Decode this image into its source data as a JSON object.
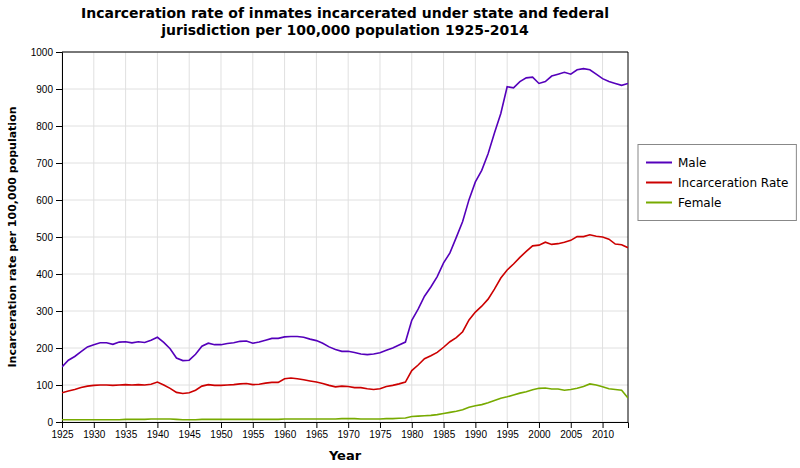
{
  "chart_data": {
    "type": "line",
    "title": "Incarceration rate of inmates incarcerated under state and federal\njurisdiction per 100,000 population 1925-2014",
    "x_label": "Year",
    "y_label": "Incarceration rate per 100,000 population",
    "x": [
      1925,
      1926,
      1927,
      1928,
      1929,
      1930,
      1931,
      1932,
      1933,
      1934,
      1935,
      1936,
      1937,
      1938,
      1939,
      1940,
      1941,
      1942,
      1943,
      1944,
      1945,
      1946,
      1947,
      1948,
      1949,
      1950,
      1951,
      1952,
      1953,
      1954,
      1955,
      1956,
      1957,
      1958,
      1959,
      1960,
      1961,
      1962,
      1963,
      1964,
      1965,
      1966,
      1967,
      1968,
      1969,
      1970,
      1971,
      1972,
      1973,
      1974,
      1975,
      1976,
      1977,
      1978,
      1979,
      1980,
      1981,
      1982,
      1983,
      1984,
      1985,
      1986,
      1987,
      1988,
      1989,
      1990,
      1991,
      1992,
      1993,
      1994,
      1995,
      1996,
      1997,
      1998,
      1999,
      2000,
      2001,
      2002,
      2003,
      2004,
      2005,
      2006,
      2007,
      2008,
      2009,
      2010,
      2011,
      2012,
      2013,
      2014
    ],
    "series": [
      {
        "name": "Male",
        "color": "#5500bb",
        "values": [
          149,
          167,
          177,
          190,
          203,
          209,
          214,
          214,
          210,
          216,
          217,
          214,
          217,
          215,
          221,
          229,
          215,
          198,
          173,
          166,
          167,
          183,
          205,
          213,
          209,
          209,
          212,
          214,
          218,
          219,
          213,
          216,
          221,
          226,
          226,
          230,
          231,
          231,
          229,
          224,
          220,
          213,
          203,
          196,
          191,
          191,
          188,
          184,
          182,
          184,
          187,
          194,
          200,
          208,
          216,
          275,
          305,
          340,
          365,
          393,
          430,
          457,
          499,
          542,
          601,
          649,
          680,
          725,
          781,
          834,
          906,
          903,
          920,
          930,
          932,
          915,
          920,
          935,
          940,
          945,
          940,
          952,
          955,
          952,
          940,
          928,
          920,
          915,
          910,
          915
        ]
      },
      {
        "name": "Incarceration Rate",
        "color": "#cc0000",
        "values": [
          79,
          84,
          88,
          93,
          97,
          99,
          100,
          100,
          99,
          100,
          101,
          100,
          101,
          100,
          102,
          108,
          100,
          91,
          80,
          77,
          79,
          86,
          97,
          101,
          99,
          99,
          100,
          101,
          103,
          104,
          101,
          102,
          105,
          107,
          107,
          117,
          119,
          117,
          114,
          111,
          108,
          104,
          99,
          95,
          97,
          96,
          93,
          93,
          90,
          88,
          90,
          96,
          99,
          103,
          108,
          139,
          154,
          171,
          179,
          188,
          202,
          217,
          228,
          244,
          276,
          297,
          313,
          332,
          359,
          389,
          411,
          427,
          445,
          461,
          476,
          478,
          486,
          480,
          482,
          486,
          491,
          501,
          501,
          506,
          502,
          500,
          494,
          481,
          479,
          471
        ]
      },
      {
        "name": "Female",
        "color": "#77aa00",
        "values": [
          6,
          6,
          6,
          6,
          6,
          6,
          6,
          6,
          6,
          6,
          7,
          7,
          7,
          7,
          8,
          8,
          8,
          8,
          7,
          6,
          6,
          6,
          7,
          7,
          7,
          7,
          7,
          7,
          7,
          7,
          7,
          7,
          7,
          7,
          7,
          8,
          8,
          8,
          8,
          8,
          8,
          8,
          8,
          8,
          9,
          9,
          9,
          8,
          8,
          8,
          8,
          9,
          9,
          10,
          11,
          15,
          16,
          17,
          18,
          20,
          23,
          26,
          29,
          33,
          40,
          44,
          47,
          52,
          58,
          64,
          68,
          73,
          78,
          82,
          87,
          91,
          92,
          89,
          89,
          86,
          88,
          91,
          96,
          103,
          100,
          95,
          90,
          88,
          86,
          65
        ]
      }
    ],
    "xlim": [
      1925,
      2014
    ],
    "ylim": [
      0,
      1000
    ],
    "xticks": [
      1925,
      1930,
      1935,
      1940,
      1945,
      1950,
      1955,
      1960,
      1965,
      1970,
      1975,
      1980,
      1985,
      1990,
      1995,
      2000,
      2005,
      2010
    ],
    "yticks": [
      0,
      100,
      200,
      300,
      400,
      500,
      600,
      700,
      800,
      900,
      1000
    ],
    "grid": true,
    "legend": "right"
  }
}
